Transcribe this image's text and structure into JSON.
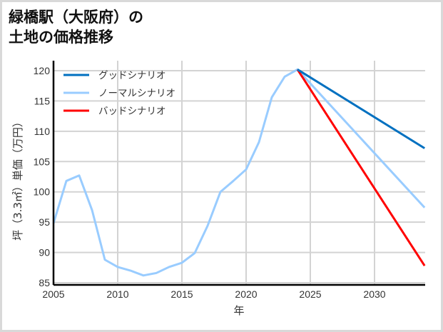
{
  "title": {
    "line1": "緑橋駅（大阪府）の",
    "line2": "土地の価格推移"
  },
  "colors": {
    "good": "#0070c0",
    "normal": "#99ccff",
    "bad": "#ff0000",
    "grid": "#d3d3d3",
    "axis": "#000000"
  },
  "chart_data": {
    "type": "line",
    "title": "緑橋駅（大阪府）の土地の価格推移",
    "xlabel": "年",
    "ylabel": "坪（3.3㎡）単価（万円）",
    "xlim": [
      2005,
      2034
    ],
    "ylim": [
      85,
      121
    ],
    "x_ticks": [
      2005,
      2010,
      2015,
      2020,
      2025,
      2030
    ],
    "y_ticks": [
      85,
      90,
      95,
      100,
      105,
      110,
      115,
      120
    ],
    "grid": true,
    "legend_position": "upper left",
    "series": [
      {
        "name": "グッドシナリオ",
        "color": "#0070c0",
        "x": [
          2024,
          2034
        ],
        "values": [
          120.2,
          107.2
        ]
      },
      {
        "name": "ノーマルシナリオ",
        "color": "#99ccff",
        "x": [
          2005,
          2006,
          2007,
          2008,
          2009,
          2010,
          2011,
          2012,
          2013,
          2014,
          2015,
          2016,
          2017,
          2018,
          2019,
          2020,
          2021,
          2022,
          2023,
          2024,
          2034
        ],
        "values": [
          94.8,
          101.8,
          102.7,
          97.0,
          88.8,
          87.6,
          87.0,
          86.2,
          86.6,
          87.6,
          88.3,
          89.9,
          94.4,
          100.0,
          101.8,
          103.7,
          108.2,
          115.6,
          119.0,
          120.2,
          97.4
        ]
      },
      {
        "name": "バッドシナリオ",
        "color": "#ff0000",
        "x": [
          2024,
          2034
        ],
        "values": [
          120.2,
          87.8
        ]
      }
    ]
  },
  "axes": {
    "xlabel": "年",
    "ylabel": "坪（3.3㎡）単価（万円）",
    "x_ticks": [
      "2005",
      "2010",
      "2015",
      "2020",
      "2025",
      "2030"
    ],
    "y_ticks": [
      "85",
      "90",
      "95",
      "100",
      "105",
      "110",
      "115",
      "120"
    ]
  },
  "legend": [
    {
      "label": "グッドシナリオ",
      "color": "#0070c0"
    },
    {
      "label": "ノーマルシナリオ",
      "color": "#99ccff"
    },
    {
      "label": "バッドシナリオ",
      "color": "#ff0000"
    }
  ]
}
